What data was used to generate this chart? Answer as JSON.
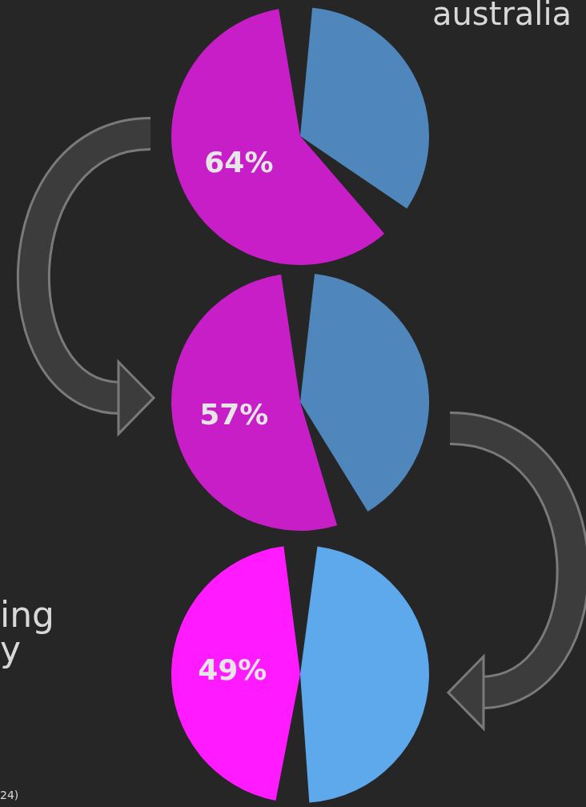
{
  "chart_data": [
    {
      "type": "pie",
      "categories": [
        null,
        null
      ],
      "values": [
        36,
        64
      ],
      "colors": [
        "#4f87bd",
        "#c81ec8"
      ],
      "value_labels": [
        null,
        "64%"
      ],
      "annotations": [
        "australia"
      ]
    },
    {
      "type": "pie",
      "categories": [
        null,
        null
      ],
      "values": [
        43,
        57
      ],
      "colors": [
        "#4f87bd",
        "#c81ec8"
      ],
      "value_labels": [
        null,
        "57%"
      ]
    },
    {
      "type": "pie",
      "categories": [
        null,
        null
      ],
      "values": [
        51,
        49
      ],
      "colors": [
        "#5ea8ec",
        "#ff1aff"
      ],
      "value_labels": [
        null,
        "49%"
      ],
      "annotations": [
        "ing",
        "y",
        "24)"
      ]
    }
  ]
}
